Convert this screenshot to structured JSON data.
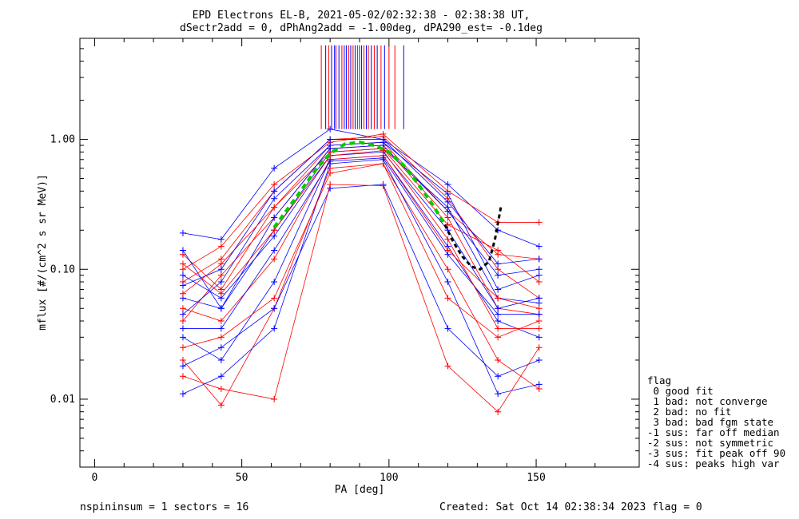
{
  "header": {
    "title_line1": "EPD Electrons EL-B, 2021-05-02/02:32:38 - 02:38:38 UT,",
    "title_line2": "dSectr2add = 0, dPhAng2add = -1.00deg, dPA290_est=  -0.1deg"
  },
  "footer": {
    "left": "nspininsum =  1  sectors = 16",
    "right": "Created: Sat Oct 14 02:38:34 2023   flag = 0"
  },
  "legend": {
    "title": "flag",
    "items": [
      " 0 good fit",
      " 1 bad: not converge",
      " 2 bad: no fit",
      " 3 bad: bad fgm state",
      "-1 sus: far off median",
      "-2 sus: not symmetric",
      "-3 sus: fit peak off 90",
      "-4 sus: peaks high var"
    ]
  },
  "colors": {
    "red": "#ff0000",
    "blue": "#0000ff",
    "green": "#00cc00",
    "black": "#000000"
  },
  "chart_data": {
    "type": "line",
    "xlabel": "PA [deg]",
    "ylabel": "mflux [#/(cm^2 s sr MeV)]",
    "xlim": [
      -5,
      185
    ],
    "ylim": [
      0.003,
      6.0
    ],
    "yscale": "log",
    "xticks": [
      0,
      50,
      100,
      150
    ],
    "xtick_labels": [
      "0",
      "50",
      "100",
      "150"
    ],
    "yticks": [
      0.01,
      0.1,
      1.0
    ],
    "ytick_labels": [
      "0.01",
      "0.10",
      "1.00"
    ],
    "pa_bins": [
      30,
      43,
      61,
      80,
      98,
      120,
      137,
      151
    ],
    "series": [
      {
        "color": "red",
        "values": [
          0.13,
          0.07,
          0.3,
          0.9,
          0.95,
          0.28,
          0.13,
          0.12
        ]
      },
      {
        "color": "blue",
        "values": [
          0.19,
          0.17,
          0.6,
          1.2,
          1.0,
          0.45,
          0.2,
          0.15
        ]
      },
      {
        "color": "red",
        "values": [
          0.08,
          0.12,
          0.4,
          1.0,
          1.05,
          0.35,
          0.1,
          0.06
        ]
      },
      {
        "color": "blue",
        "values": [
          0.06,
          0.05,
          0.2,
          0.8,
          0.85,
          0.3,
          0.06,
          0.055
        ]
      },
      {
        "color": "red",
        "values": [
          0.04,
          0.09,
          0.25,
          0.85,
          0.9,
          0.25,
          0.05,
          0.045
        ]
      },
      {
        "color": "blue",
        "values": [
          0.03,
          0.02,
          0.08,
          0.7,
          0.75,
          0.15,
          0.04,
          0.03
        ]
      },
      {
        "color": "red",
        "values": [
          0.02,
          0.009,
          0.05,
          0.6,
          0.65,
          0.1,
          0.02,
          0.012
        ]
      },
      {
        "color": "blue",
        "values": [
          0.011,
          0.015,
          0.035,
          0.65,
          0.7,
          0.08,
          0.011,
          0.013
        ]
      },
      {
        "color": "red",
        "values": [
          0.1,
          0.15,
          0.45,
          0.95,
          1.1,
          0.4,
          0.23,
          0.23
        ]
      },
      {
        "color": "blue",
        "values": [
          0.09,
          0.06,
          0.18,
          0.75,
          0.8,
          0.2,
          0.05,
          0.06
        ]
      },
      {
        "color": "red",
        "values": [
          0.05,
          0.04,
          0.12,
          0.7,
          0.75,
          0.14,
          0.06,
          0.05
        ]
      },
      {
        "color": "blue",
        "values": [
          0.045,
          0.08,
          0.35,
          0.9,
          0.95,
          0.38,
          0.07,
          0.09
        ]
      },
      {
        "color": "red",
        "values": [
          0.025,
          0.03,
          0.06,
          0.55,
          0.65,
          0.06,
          0.03,
          0.04
        ]
      },
      {
        "color": "blue",
        "values": [
          0.018,
          0.025,
          0.05,
          0.42,
          0.45,
          0.035,
          0.015,
          0.02
        ]
      },
      {
        "color": "red",
        "values": [
          0.065,
          0.11,
          0.3,
          0.8,
          0.85,
          0.22,
          0.14,
          0.08
        ]
      },
      {
        "color": "blue",
        "values": [
          0.14,
          0.05,
          0.25,
          0.85,
          0.9,
          0.28,
          0.09,
          0.1
        ]
      },
      {
        "color": "red",
        "values": [
          0.015,
          0.012,
          0.01,
          0.45,
          0.44,
          0.018,
          0.008,
          0.025
        ]
      },
      {
        "color": "blue",
        "values": [
          0.035,
          0.035,
          0.14,
          0.68,
          0.72,
          0.13,
          0.045,
          0.045
        ]
      },
      {
        "color": "red",
        "values": [
          0.11,
          0.065,
          0.2,
          0.75,
          0.82,
          0.17,
          0.035,
          0.035
        ]
      },
      {
        "color": "blue",
        "values": [
          0.075,
          0.1,
          0.4,
          1.0,
          1.0,
          0.33,
          0.11,
          0.12
        ]
      }
    ],
    "fit_curve": {
      "color": "green",
      "style": "dashed",
      "x": [
        61,
        65,
        70,
        75,
        80,
        85,
        90,
        95,
        100,
        105,
        110,
        115,
        119
      ],
      "y": [
        0.21,
        0.28,
        0.4,
        0.58,
        0.78,
        0.92,
        0.95,
        0.9,
        0.8,
        0.63,
        0.45,
        0.31,
        0.22
      ]
    },
    "extra_curve": {
      "color": "black",
      "style": "dashed",
      "x": [
        119,
        122,
        125,
        128,
        131,
        134,
        136,
        138
      ],
      "y": [
        0.22,
        0.16,
        0.125,
        0.105,
        0.1,
        0.115,
        0.17,
        0.3
      ]
    },
    "vertical_lines": {
      "top": 5.3,
      "bottom": 1.2,
      "x": [
        77,
        78.5,
        79.5,
        80.5,
        81.5,
        82,
        83,
        84,
        84.8,
        85.5,
        86.3,
        87,
        87.8,
        88.5,
        89.3,
        90,
        90.7,
        91.5,
        92.3,
        93,
        94,
        95,
        96,
        97.3,
        98.5,
        100,
        102,
        105
      ],
      "colors": [
        "red",
        "blue",
        "red",
        "blue",
        "blue",
        "red",
        "blue",
        "red",
        "blue",
        "blue",
        "red",
        "blue",
        "red",
        "blue",
        "red",
        "blue",
        "blue",
        "red",
        "blue",
        "red",
        "blue",
        "red",
        "blue",
        "red",
        "blue",
        "red",
        "red",
        "blue"
      ]
    }
  }
}
